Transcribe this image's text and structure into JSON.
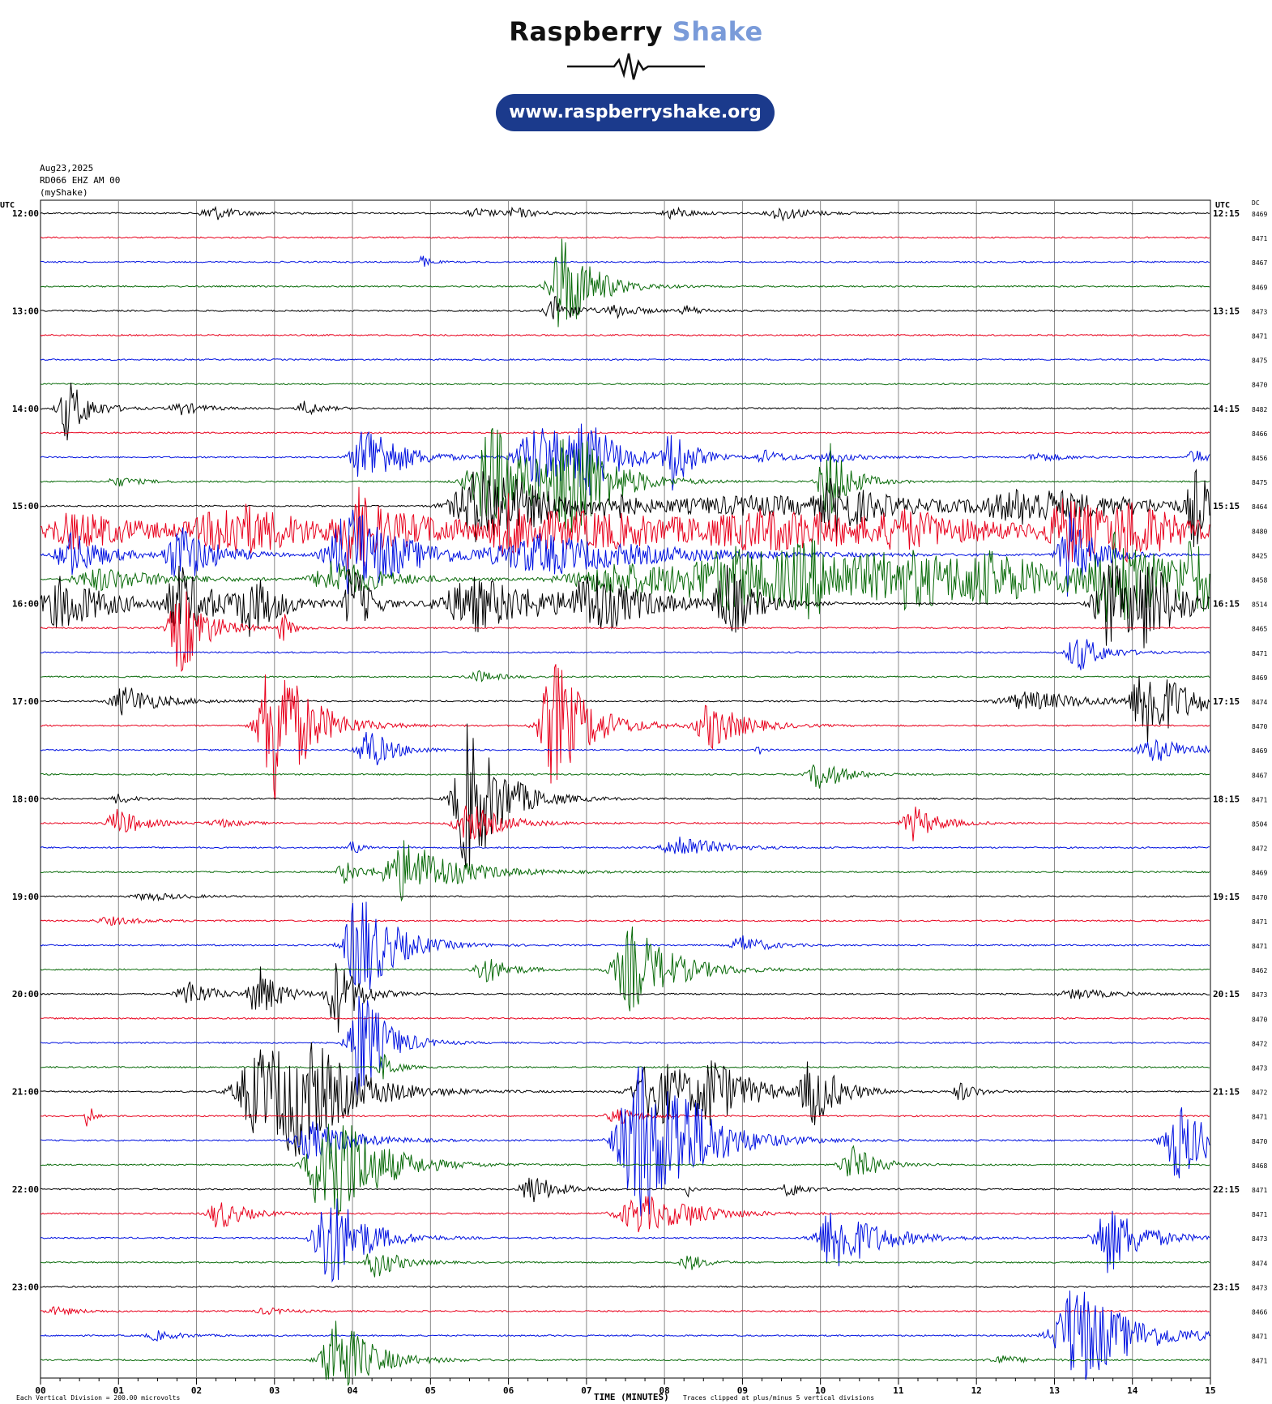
{
  "header": {
    "brand_word1": "Raspberry",
    "brand_word2": "Shake",
    "url": "www.raspberryshake.org",
    "brand_color": "#1b3a8c",
    "accent_color": "#7a9bd9"
  },
  "meta": {
    "date": "Aug23,2025",
    "station": "RD066 EHZ AM 00",
    "source": "(myShake)"
  },
  "chart_data": {
    "type": "line",
    "title": "",
    "left_axis_label": "UTC",
    "right_axis_label": "UTC",
    "dc_label": "DC",
    "xlabel": "TIME (MINUTES)",
    "x_ticks": [
      "00",
      "01",
      "02",
      "03",
      "04",
      "05",
      "06",
      "07",
      "08",
      "09",
      "10",
      "11",
      "12",
      "13",
      "14",
      "15"
    ],
    "xlim": [
      0,
      15
    ],
    "grid": true,
    "trace_colors": [
      "#000000",
      "#e8001c",
      "#0011e0",
      "#0a6b0a"
    ],
    "left_hour_labels": [
      "12:00",
      "13:00",
      "14:00",
      "15:00",
      "16:00",
      "17:00",
      "18:00",
      "19:00",
      "20:00",
      "21:00",
      "22:00",
      "23:00"
    ],
    "right_hour_labels": [
      "12:15",
      "13:15",
      "14:15",
      "15:15",
      "16:15",
      "17:15",
      "18:15",
      "19:15",
      "20:15",
      "21:15",
      "22:15",
      "23:15"
    ],
    "dc_values": [
      "8469",
      "8471",
      "8467",
      "8469",
      "8473",
      "8471",
      "8475",
      "8470",
      "8482",
      "8466",
      "8456",
      "8475",
      "8464",
      "8480",
      "8425",
      "8458",
      "8514",
      "8465",
      "8471",
      "8469",
      "8474",
      "8470",
      "8469",
      "8467",
      "8471",
      "8504",
      "8472",
      "8469",
      "8470",
      "8471",
      "8471",
      "8462",
      "8473",
      "8470",
      "8472",
      "8473",
      "8472",
      "8471",
      "8470",
      "8468",
      "8471",
      "8471",
      "8473",
      "8474",
      "8473",
      "8466",
      "8471",
      "8471"
    ],
    "footer_left": "Each Vertical Division =  200.00 microvolts",
    "footer_right": "Traces clipped at plus/minus 5 vertical divisions",
    "bursts": [
      [
        0,
        2.2,
        10,
        0.3
      ],
      [
        0,
        6.1,
        6,
        0.25
      ],
      [
        0,
        8.1,
        8,
        0.25
      ],
      [
        0,
        9.5,
        9,
        0.35
      ],
      [
        0,
        5.6,
        6,
        0.3
      ],
      [
        2,
        4.9,
        8,
        0.1
      ],
      [
        3,
        6.7,
        70,
        0.35
      ],
      [
        4,
        6.6,
        18,
        0.25
      ],
      [
        4,
        7.4,
        8,
        0.3
      ],
      [
        4,
        8.3,
        6,
        0.2
      ],
      [
        8,
        0.35,
        40,
        0.25
      ],
      [
        8,
        1.8,
        8,
        0.3
      ],
      [
        8,
        3.4,
        10,
        0.2
      ],
      [
        10,
        4.2,
        45,
        0.4
      ],
      [
        10,
        6.4,
        45,
        0.6
      ],
      [
        10,
        7.0,
        40,
        0.3
      ],
      [
        10,
        8.1,
        48,
        0.2
      ],
      [
        10,
        9.3,
        8,
        0.3
      ],
      [
        10,
        10.1,
        8,
        0.3
      ],
      [
        10,
        12.8,
        6,
        0.3
      ],
      [
        10,
        14.8,
        10,
        0.2
      ],
      [
        11,
        1.0,
        6,
        0.3
      ],
      [
        11,
        5.8,
        70,
        0.6
      ],
      [
        11,
        6.8,
        80,
        0.4
      ],
      [
        11,
        10.1,
        55,
        0.25
      ],
      [
        12,
        5.7,
        55,
        0.8
      ],
      [
        12,
        7.3,
        22,
        0.15
      ],
      [
        12,
        9.3,
        12,
        3.0
      ],
      [
        12,
        10.2,
        30,
        0.4
      ],
      [
        12,
        12.7,
        20,
        1.3
      ],
      [
        12,
        14.8,
        50,
        0.2
      ],
      [
        13,
        0.5,
        25,
        1.0
      ],
      [
        13,
        2.5,
        35,
        1.0
      ],
      [
        13,
        4.0,
        55,
        0.3
      ],
      [
        13,
        5.0,
        12,
        2.0
      ],
      [
        13,
        6.0,
        35,
        0.4
      ],
      [
        13,
        7.3,
        18,
        2.0
      ],
      [
        13,
        9.5,
        20,
        2.0
      ],
      [
        13,
        11.1,
        15,
        0.8
      ],
      [
        13,
        13.2,
        40,
        0.6
      ],
      [
        13,
        14.0,
        30,
        0.6
      ],
      [
        14,
        0.4,
        30,
        0.4
      ],
      [
        14,
        1.8,
        40,
        0.4
      ],
      [
        14,
        4.0,
        65,
        0.6
      ],
      [
        14,
        6.5,
        25,
        1.5
      ],
      [
        14,
        13.2,
        55,
        0.3
      ],
      [
        15,
        0.8,
        15,
        0.8
      ],
      [
        15,
        3.8,
        25,
        0.6
      ],
      [
        15,
        7.5,
        22,
        1.5
      ],
      [
        15,
        8.9,
        35,
        1.2
      ],
      [
        15,
        9.9,
        30,
        0.8
      ],
      [
        15,
        11.2,
        25,
        1.2
      ],
      [
        15,
        12.2,
        20,
        1.0
      ],
      [
        15,
        13.8,
        55,
        0.8
      ],
      [
        15,
        14.8,
        35,
        0.4
      ],
      [
        16,
        0.3,
        35,
        0.6
      ],
      [
        16,
        1.8,
        45,
        0.4
      ],
      [
        16,
        2.7,
        35,
        0.4
      ],
      [
        16,
        4.0,
        55,
        0.2
      ],
      [
        16,
        5.6,
        35,
        1.0
      ],
      [
        16,
        7.1,
        35,
        0.6
      ],
      [
        16,
        8.8,
        50,
        0.3
      ],
      [
        16,
        13.7,
        60,
        0.4
      ],
      [
        16,
        14.2,
        45,
        0.4
      ],
      [
        17,
        1.8,
        60,
        0.3
      ],
      [
        17,
        3.1,
        22,
        0.1
      ],
      [
        18,
        13.3,
        25,
        0.3
      ],
      [
        19,
        5.6,
        8,
        0.25
      ],
      [
        20,
        1.1,
        20,
        0.4
      ],
      [
        20,
        12.7,
        12,
        0.8
      ],
      [
        20,
        14.2,
        60,
        0.4
      ],
      [
        21,
        3.0,
        110,
        0.4
      ],
      [
        21,
        6.6,
        85,
        0.4
      ],
      [
        21,
        8.6,
        30,
        0.4
      ],
      [
        22,
        4.2,
        28,
        0.3
      ],
      [
        22,
        9.2,
        10,
        0.05
      ],
      [
        22,
        14.3,
        15,
        0.5
      ],
      [
        23,
        10.0,
        20,
        0.3
      ],
      [
        24,
        5.5,
        100,
        0.4
      ],
      [
        24,
        1.0,
        6,
        0.2
      ],
      [
        25,
        5.5,
        25,
        0.4
      ],
      [
        25,
        1.0,
        18,
        0.3
      ],
      [
        25,
        11.2,
        22,
        0.3
      ],
      [
        25,
        2.3,
        5,
        0.3
      ],
      [
        26,
        8.2,
        18,
        0.4
      ],
      [
        26,
        4.0,
        10,
        0.1
      ],
      [
        27,
        4.7,
        40,
        0.6
      ],
      [
        27,
        3.9,
        15,
        0.2
      ],
      [
        28,
        1.4,
        5,
        0.4
      ],
      [
        29,
        0.9,
        5,
        0.4
      ],
      [
        30,
        4.1,
        75,
        0.4
      ],
      [
        30,
        9.0,
        12,
        0.3
      ],
      [
        31,
        7.6,
        55,
        0.5
      ],
      [
        31,
        5.7,
        18,
        0.3
      ],
      [
        32,
        1.9,
        18,
        0.3
      ],
      [
        32,
        2.8,
        35,
        0.25
      ],
      [
        32,
        3.8,
        50,
        0.25
      ],
      [
        32,
        13.3,
        6,
        0.5
      ],
      [
        34,
        4.1,
        80,
        0.3
      ],
      [
        35,
        4.4,
        20,
        0.15
      ],
      [
        36,
        2.8,
        55,
        0.6
      ],
      [
        36,
        3.3,
        55,
        0.6
      ],
      [
        36,
        7.9,
        45,
        0.6
      ],
      [
        36,
        8.6,
        35,
        0.4
      ],
      [
        36,
        9.9,
        45,
        0.3
      ],
      [
        36,
        11.8,
        12,
        0.2
      ],
      [
        36,
        3.5,
        8,
        0.5
      ],
      [
        37,
        0.6,
        30,
        0.05
      ],
      [
        37,
        7.4,
        10,
        0.3
      ],
      [
        38,
        3.5,
        25,
        0.5
      ],
      [
        38,
        7.7,
        110,
        0.6
      ],
      [
        38,
        14.6,
        50,
        0.4
      ],
      [
        38,
        8.2,
        30,
        0.3
      ],
      [
        39,
        3.7,
        100,
        0.5
      ],
      [
        39,
        10.4,
        25,
        0.3
      ],
      [
        40,
        6.3,
        20,
        0.3
      ],
      [
        40,
        9.6,
        10,
        0.2
      ],
      [
        40,
        8.3,
        10,
        0.05
      ],
      [
        41,
        2.3,
        20,
        0.3
      ],
      [
        41,
        7.7,
        25,
        0.6
      ],
      [
        41,
        8.3,
        6,
        0.3
      ],
      [
        42,
        3.7,
        70,
        0.4
      ],
      [
        42,
        10.2,
        45,
        0.5
      ],
      [
        42,
        13.7,
        45,
        0.4
      ],
      [
        43,
        4.3,
        20,
        0.3
      ],
      [
        43,
        8.3,
        12,
        0.2
      ],
      [
        45,
        0.2,
        5,
        0.3
      ],
      [
        45,
        2.9,
        4,
        0.3
      ],
      [
        46,
        1.5,
        6,
        0.3
      ],
      [
        46,
        13.3,
        70,
        0.6
      ],
      [
        47,
        3.8,
        60,
        0.4
      ],
      [
        47,
        12.3,
        6,
        0.3
      ]
    ]
  }
}
